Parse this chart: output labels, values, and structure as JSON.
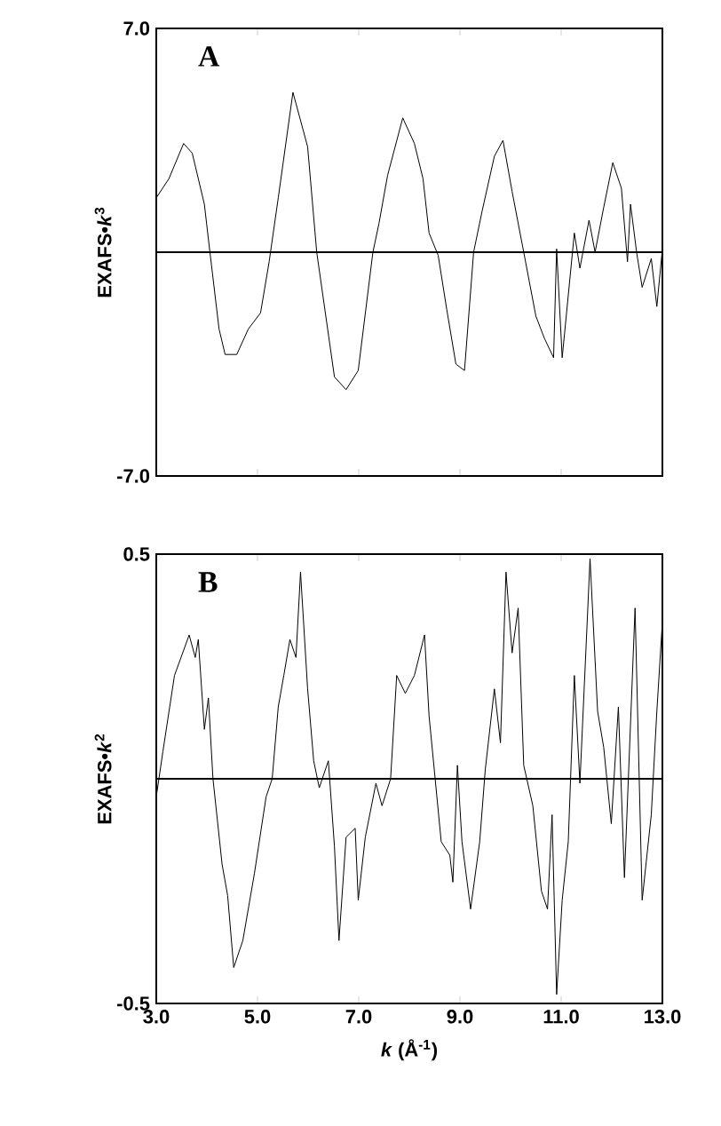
{
  "chart_data": [
    {
      "type": "line",
      "title": "A",
      "ylabel": "EXAFS•*k*$^{3}$",
      "xlim": [
        3,
        13
      ],
      "xticks": [
        {
          "value": 3,
          "label": null
        },
        {
          "value": 5,
          "label": null
        },
        {
          "value": 7,
          "label": null
        },
        {
          "value": 9,
          "label": null
        },
        {
          "value": 11,
          "label": null
        },
        {
          "value": 13,
          "label": null
        }
      ],
      "ylim": [
        -7,
        7
      ],
      "yticks": [
        {
          "value": -7,
          "label": "-7.0"
        },
        {
          "value": 7,
          "label": "7.0"
        }
      ],
      "tick_labels": "y",
      "ref_lines": [
        {
          "axis": "y",
          "value": 0,
          "color": "#000000"
        }
      ],
      "series": [
        {
          "color": "#000000",
          "x": [
            3.0,
            3.25,
            3.54,
            3.71,
            3.95,
            4.06,
            4.24,
            4.36,
            4.59,
            4.82,
            5.06,
            5.23,
            5.41,
            5.7,
            5.99,
            6.17,
            6.52,
            6.75,
            6.99,
            7.28,
            7.4,
            7.57,
            7.87,
            8.1,
            8.27,
            8.39,
            8.57,
            8.74,
            8.92,
            9.09,
            9.27,
            9.44,
            9.68,
            9.85,
            10.03,
            10.26,
            10.5,
            10.67,
            10.85,
            10.91,
            11.02,
            11.26,
            11.37,
            11.55,
            11.67,
            11.84,
            12.02,
            12.19,
            12.31,
            12.37,
            12.49,
            12.6,
            12.78,
            12.89,
            13.0
          ],
          "values": [
            1.7,
            2.3,
            3.4,
            3.1,
            1.5,
            0.0,
            -2.4,
            -3.2,
            -3.2,
            -2.4,
            -1.9,
            -0.3,
            1.7,
            5.0,
            3.3,
            0.0,
            -3.9,
            -4.3,
            -3.7,
            0.0,
            0.9,
            2.4,
            4.2,
            3.4,
            2.3,
            0.6,
            -0.1,
            -1.8,
            -3.5,
            -3.7,
            0.0,
            1.3,
            3.0,
            3.5,
            1.9,
            0.0,
            -2.0,
            -2.7,
            -3.3,
            0.1,
            -3.3,
            0.6,
            -0.5,
            1.0,
            0.0,
            1.4,
            2.8,
            2.0,
            -0.3,
            1.5,
            0.0,
            -1.1,
            -0.2,
            -1.7,
            0.1
          ]
        }
      ]
    },
    {
      "type": "line",
      "title": "B",
      "ylabel": "EXAFS•*k*$^{2}$",
      "xlabel": "*k* (Å$^{-1}$)",
      "xlim": [
        3,
        13
      ],
      "xticks": [
        {
          "value": 3,
          "label": "3.0"
        },
        {
          "value": 5,
          "label": "5.0"
        },
        {
          "value": 7,
          "label": "7.0"
        },
        {
          "value": 9,
          "label": "9.0"
        },
        {
          "value": 11,
          "label": "11.0"
        },
        {
          "value": 13,
          "label": "13.0"
        }
      ],
      "ylim": [
        -0.5,
        0.5
      ],
      "yticks": [
        -0.5,
        0.5
      ],
      "ref_lines": [
        {
          "axis": "y",
          "value": 0,
          "color": "#000000"
        }
      ],
      "series": [
        {
          "color": "#000000",
          "x": [
            3.0,
            3.13,
            3.36,
            3.65,
            3.77,
            3.83,
            3.95,
            4.03,
            4.12,
            4.3,
            4.41,
            4.53,
            4.71,
            4.94,
            5.17,
            5.29,
            5.41,
            5.52,
            5.64,
            5.76,
            5.85,
            5.99,
            6.11,
            6.22,
            6.4,
            6.52,
            6.61,
            6.75,
            6.93,
            6.99,
            7.13,
            7.34,
            7.46,
            7.63,
            7.75,
            7.92,
            8.1,
            8.3,
            8.39,
            8.51,
            8.63,
            8.8,
            8.86,
            8.95,
            9.04,
            9.21,
            9.39,
            9.5,
            9.68,
            9.8,
            9.91,
            10.03,
            10.15,
            10.26,
            10.44,
            10.61,
            10.73,
            10.82,
            10.91,
            11.02,
            11.14,
            11.26,
            11.37,
            11.57,
            11.72,
            11.84,
            11.99,
            12.13,
            12.25,
            12.46,
            12.6,
            12.78,
            12.89,
            13.0
          ],
          "values": [
            -0.04,
            0.06,
            0.23,
            0.32,
            0.27,
            0.31,
            0.11,
            0.18,
            0.0,
            -0.19,
            -0.26,
            -0.42,
            -0.36,
            -0.21,
            -0.04,
            0.0,
            0.16,
            0.23,
            0.31,
            0.27,
            0.46,
            0.2,
            0.04,
            -0.02,
            0.04,
            -0.15,
            -0.36,
            -0.13,
            -0.11,
            -0.27,
            -0.13,
            -0.01,
            -0.06,
            0.0,
            0.23,
            0.19,
            0.23,
            0.32,
            0.14,
            0.0,
            -0.14,
            -0.17,
            -0.23,
            0.03,
            -0.14,
            -0.29,
            -0.14,
            0.02,
            0.2,
            0.08,
            0.46,
            0.28,
            0.38,
            0.03,
            -0.06,
            -0.25,
            -0.29,
            -0.08,
            -0.48,
            -0.27,
            -0.14,
            0.23,
            -0.01,
            0.49,
            0.15,
            0.07,
            -0.1,
            0.16,
            -0.22,
            0.38,
            -0.27,
            -0.08,
            0.15,
            0.35
          ]
        }
      ]
    }
  ]
}
